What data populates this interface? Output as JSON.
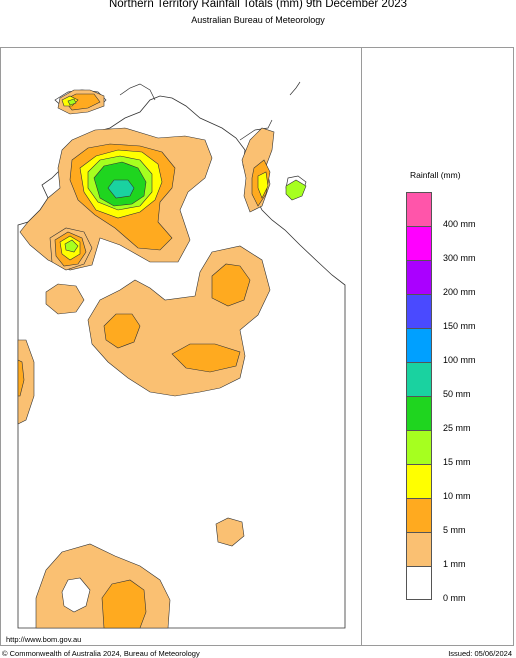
{
  "header": {
    "title": "Northern Territory Rainfall Totals (mm) 9th December 2023",
    "subtitle": "Australian Bureau of Meteorology"
  },
  "footer": {
    "url": "http://www.bom.gov.au",
    "copyright": "© Commonwealth of Australia 2024, Bureau of Meteorology",
    "issued": "Issued: 05/06/2024"
  },
  "legend": {
    "title": "Rainfall (mm)",
    "boxes": [
      {
        "color": "#ff55aa"
      },
      {
        "color": "#ff00ff"
      },
      {
        "color": "#aa00ff"
      },
      {
        "color": "#4a4aff"
      },
      {
        "color": "#00a0ff"
      },
      {
        "color": "#1ad2a0"
      },
      {
        "color": "#1fd51f"
      },
      {
        "color": "#a6ff1f"
      },
      {
        "color": "#ffff00"
      },
      {
        "color": "#ffaa1f"
      },
      {
        "color": "#fac072"
      },
      {
        "color": "#ffffff"
      }
    ],
    "labels": [
      "400 mm",
      "300 mm",
      "200 mm",
      "150 mm",
      "100 mm",
      "50 mm",
      "25 mm",
      "15 mm",
      "10 mm",
      "5 mm",
      "1 mm",
      "0 mm"
    ]
  },
  "colors": {
    "r1": "#fac072",
    "r5": "#ffaa1f",
    "r10": "#ffff00",
    "r15": "#a6ff1f",
    "r25": "#1fd51f",
    "r50": "#1ad2a0"
  }
}
